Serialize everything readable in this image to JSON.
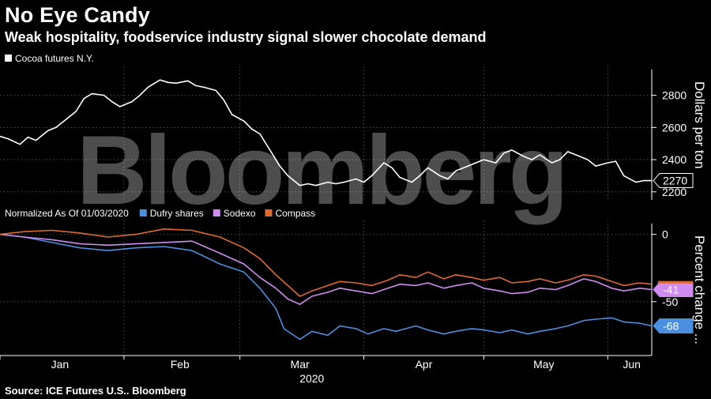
{
  "header": {
    "title": "No Eye Candy",
    "subtitle": "Weak hospitality, foodservice industry signal slower chocolate demand",
    "source": "Source: ICE Futures U.S.. Bloomberg",
    "watermark": "Bloomberg"
  },
  "chart_data": [
    {
      "type": "line",
      "title": "",
      "ylabel": "Dollars per ton",
      "ylim": [
        2150,
        2960
      ],
      "yticks": [
        2200,
        2400,
        2600,
        2800
      ],
      "xlim": [
        "2020-01-01",
        "2020-06-12"
      ],
      "grid": true,
      "legend_position": "top-left",
      "series": [
        {
          "name": "Cocoa futures N.Y.",
          "color": "#ffffff",
          "last_label": "2270",
          "points": [
            [
              "2020-01-01",
              2545
            ],
            [
              "2020-01-03",
              2530
            ],
            [
              "2020-01-06",
              2495
            ],
            [
              "2020-01-08",
              2540
            ],
            [
              "2020-01-10",
              2520
            ],
            [
              "2020-01-13",
              2580
            ],
            [
              "2020-01-15",
              2600
            ],
            [
              "2020-01-17",
              2640
            ],
            [
              "2020-01-20",
              2700
            ],
            [
              "2020-01-22",
              2780
            ],
            [
              "2020-01-24",
              2810
            ],
            [
              "2020-01-27",
              2800
            ],
            [
              "2020-01-29",
              2760
            ],
            [
              "2020-01-31",
              2730
            ],
            [
              "2020-02-03",
              2760
            ],
            [
              "2020-02-05",
              2800
            ],
            [
              "2020-02-07",
              2850
            ],
            [
              "2020-02-10",
              2895
            ],
            [
              "2020-02-12",
              2880
            ],
            [
              "2020-02-14",
              2875
            ],
            [
              "2020-02-17",
              2890
            ],
            [
              "2020-02-19",
              2860
            ],
            [
              "2020-02-21",
              2850
            ],
            [
              "2020-02-24",
              2830
            ],
            [
              "2020-02-26",
              2770
            ],
            [
              "2020-02-28",
              2680
            ],
            [
              "2020-03-02",
              2640
            ],
            [
              "2020-03-04",
              2590
            ],
            [
              "2020-03-06",
              2560
            ],
            [
              "2020-03-09",
              2440
            ],
            [
              "2020-03-11",
              2360
            ],
            [
              "2020-03-13",
              2300
            ],
            [
              "2020-03-16",
              2240
            ],
            [
              "2020-03-18",
              2250
            ],
            [
              "2020-03-20",
              2240
            ],
            [
              "2020-03-23",
              2260
            ],
            [
              "2020-03-25",
              2250
            ],
            [
              "2020-03-27",
              2260
            ],
            [
              "2020-03-30",
              2280
            ],
            [
              "2020-04-01",
              2260
            ],
            [
              "2020-04-03",
              2300
            ],
            [
              "2020-04-06",
              2380
            ],
            [
              "2020-04-08",
              2350
            ],
            [
              "2020-04-10",
              2290
            ],
            [
              "2020-04-13",
              2260
            ],
            [
              "2020-04-15",
              2300
            ],
            [
              "2020-04-17",
              2350
            ],
            [
              "2020-04-20",
              2300
            ],
            [
              "2020-04-22",
              2280
            ],
            [
              "2020-04-24",
              2330
            ],
            [
              "2020-04-27",
              2360
            ],
            [
              "2020-04-29",
              2380
            ],
            [
              "2020-05-01",
              2400
            ],
            [
              "2020-05-04",
              2380
            ],
            [
              "2020-05-06",
              2440
            ],
            [
              "2020-05-08",
              2460
            ],
            [
              "2020-05-11",
              2420
            ],
            [
              "2020-05-13",
              2400
            ],
            [
              "2020-05-15",
              2430
            ],
            [
              "2020-05-18",
              2380
            ],
            [
              "2020-05-20",
              2400
            ],
            [
              "2020-05-22",
              2450
            ],
            [
              "2020-05-25",
              2420
            ],
            [
              "2020-05-27",
              2400
            ],
            [
              "2020-05-29",
              2360
            ],
            [
              "2020-06-01",
              2380
            ],
            [
              "2020-06-03",
              2390
            ],
            [
              "2020-06-05",
              2300
            ],
            [
              "2020-06-08",
              2260
            ],
            [
              "2020-06-10",
              2270
            ],
            [
              "2020-06-12",
              2270
            ]
          ]
        }
      ]
    },
    {
      "type": "line",
      "title": "Normalized As Of 01/03/2020",
      "ylabel": "Percent change ...",
      "ylim": [
        -90,
        8
      ],
      "yticks": [
        0,
        -50
      ],
      "xlim": [
        "2020-01-01",
        "2020-06-12"
      ],
      "x_tick_labels": [
        "Jan",
        "Feb",
        "Mar",
        "Apr",
        "May",
        "Jun"
      ],
      "x_group_label": "2020",
      "grid": true,
      "legend_position": "top-left",
      "series": [
        {
          "name": "Dufry shares",
          "color": "#4a8fe0",
          "last_label": "-68",
          "points": [
            [
              "2020-01-01",
              0
            ],
            [
              "2020-01-07",
              -2
            ],
            [
              "2020-01-14",
              -6
            ],
            [
              "2020-01-21",
              -10
            ],
            [
              "2020-01-28",
              -12
            ],
            [
              "2020-02-04",
              -10
            ],
            [
              "2020-02-11",
              -9
            ],
            [
              "2020-02-18",
              -12
            ],
            [
              "2020-02-25",
              -22
            ],
            [
              "2020-03-02",
              -28
            ],
            [
              "2020-03-06",
              -40
            ],
            [
              "2020-03-10",
              -55
            ],
            [
              "2020-03-12",
              -70
            ],
            [
              "2020-03-16",
              -78
            ],
            [
              "2020-03-19",
              -72
            ],
            [
              "2020-03-23",
              -75
            ],
            [
              "2020-03-26",
              -68
            ],
            [
              "2020-03-30",
              -70
            ],
            [
              "2020-04-02",
              -74
            ],
            [
              "2020-04-06",
              -70
            ],
            [
              "2020-04-09",
              -72
            ],
            [
              "2020-04-14",
              -68
            ],
            [
              "2020-04-17",
              -71
            ],
            [
              "2020-04-21",
              -74
            ],
            [
              "2020-04-24",
              -72
            ],
            [
              "2020-04-28",
              -70
            ],
            [
              "2020-05-01",
              -71
            ],
            [
              "2020-05-05",
              -73
            ],
            [
              "2020-05-08",
              -71
            ],
            [
              "2020-05-12",
              -74
            ],
            [
              "2020-05-15",
              -72
            ],
            [
              "2020-05-19",
              -70
            ],
            [
              "2020-05-22",
              -68
            ],
            [
              "2020-05-26",
              -64
            ],
            [
              "2020-05-29",
              -63
            ],
            [
              "2020-06-02",
              -62
            ],
            [
              "2020-06-05",
              -65
            ],
            [
              "2020-06-09",
              -66
            ],
            [
              "2020-06-12",
              -68
            ]
          ]
        },
        {
          "name": "Sodexo",
          "color": "#d08cf0",
          "last_label": "-41",
          "points": [
            [
              "2020-01-01",
              0
            ],
            [
              "2020-01-07",
              -2
            ],
            [
              "2020-01-14",
              -4
            ],
            [
              "2020-01-21",
              -7
            ],
            [
              "2020-01-28",
              -8
            ],
            [
              "2020-02-04",
              -7
            ],
            [
              "2020-02-11",
              -6
            ],
            [
              "2020-02-18",
              -5
            ],
            [
              "2020-02-25",
              -14
            ],
            [
              "2020-03-02",
              -22
            ],
            [
              "2020-03-06",
              -32
            ],
            [
              "2020-03-10",
              -40
            ],
            [
              "2020-03-13",
              -48
            ],
            [
              "2020-03-16",
              -52
            ],
            [
              "2020-03-19",
              -46
            ],
            [
              "2020-03-23",
              -43
            ],
            [
              "2020-03-26",
              -40
            ],
            [
              "2020-03-30",
              -42
            ],
            [
              "2020-04-03",
              -44
            ],
            [
              "2020-04-07",
              -40
            ],
            [
              "2020-04-10",
              -37
            ],
            [
              "2020-04-14",
              -38
            ],
            [
              "2020-04-17",
              -36
            ],
            [
              "2020-04-21",
              -40
            ],
            [
              "2020-04-24",
              -38
            ],
            [
              "2020-04-28",
              -36
            ],
            [
              "2020-05-01",
              -40
            ],
            [
              "2020-05-05",
              -42
            ],
            [
              "2020-05-08",
              -44
            ],
            [
              "2020-05-12",
              -43
            ],
            [
              "2020-05-15",
              -40
            ],
            [
              "2020-05-19",
              -41
            ],
            [
              "2020-05-22",
              -38
            ],
            [
              "2020-05-26",
              -33
            ],
            [
              "2020-05-29",
              -35
            ],
            [
              "2020-06-02",
              -40
            ],
            [
              "2020-06-05",
              -42
            ],
            [
              "2020-06-09",
              -40
            ],
            [
              "2020-06-12",
              -41
            ]
          ]
        },
        {
          "name": "Compass",
          "color": "#e06a2e",
          "last_label": "",
          "points": [
            [
              "2020-01-01",
              0
            ],
            [
              "2020-01-07",
              2
            ],
            [
              "2020-01-14",
              3
            ],
            [
              "2020-01-21",
              1
            ],
            [
              "2020-01-28",
              -2
            ],
            [
              "2020-02-04",
              0
            ],
            [
              "2020-02-11",
              4
            ],
            [
              "2020-02-18",
              3
            ],
            [
              "2020-02-25",
              -2
            ],
            [
              "2020-03-02",
              -10
            ],
            [
              "2020-03-06",
              -18
            ],
            [
              "2020-03-10",
              -30
            ],
            [
              "2020-03-13",
              -38
            ],
            [
              "2020-03-16",
              -46
            ],
            [
              "2020-03-19",
              -42
            ],
            [
              "2020-03-23",
              -38
            ],
            [
              "2020-03-26",
              -35
            ],
            [
              "2020-03-30",
              -36
            ],
            [
              "2020-04-03",
              -38
            ],
            [
              "2020-04-07",
              -34
            ],
            [
              "2020-04-10",
              -30
            ],
            [
              "2020-04-14",
              -32
            ],
            [
              "2020-04-17",
              -28
            ],
            [
              "2020-04-21",
              -33
            ],
            [
              "2020-04-24",
              -30
            ],
            [
              "2020-04-28",
              -32
            ],
            [
              "2020-05-01",
              -34
            ],
            [
              "2020-05-05",
              -32
            ],
            [
              "2020-05-08",
              -36
            ],
            [
              "2020-05-12",
              -35
            ],
            [
              "2020-05-15",
              -33
            ],
            [
              "2020-05-19",
              -36
            ],
            [
              "2020-05-22",
              -34
            ],
            [
              "2020-05-26",
              -30
            ],
            [
              "2020-05-29",
              -31
            ],
            [
              "2020-06-02",
              -35
            ],
            [
              "2020-06-05",
              -38
            ],
            [
              "2020-06-09",
              -36
            ],
            [
              "2020-06-12",
              -37
            ]
          ]
        }
      ]
    }
  ]
}
